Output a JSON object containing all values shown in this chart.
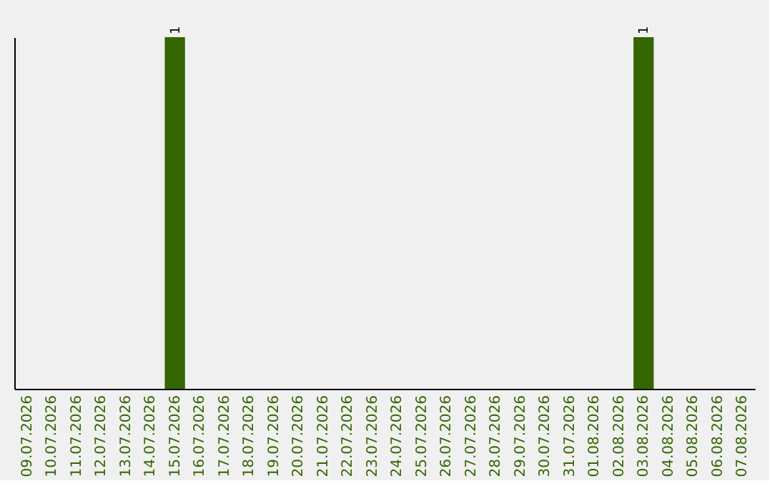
{
  "chart_data": {
    "type": "bar",
    "categories": [
      "09.07.2026",
      "10.07.2026",
      "11.07.2026",
      "12.07.2026",
      "13.07.2026",
      "14.07.2026",
      "15.07.2026",
      "16.07.2026",
      "17.07.2026",
      "18.07.2026",
      "19.07.2026",
      "20.07.2026",
      "21.07.2026",
      "22.07.2026",
      "23.07.2026",
      "24.07.2026",
      "25.07.2026",
      "26.07.2026",
      "27.07.2026",
      "28.07.2026",
      "29.07.2026",
      "30.07.2026",
      "31.07.2026",
      "01.08.2026",
      "02.08.2026",
      "03.08.2026",
      "04.08.2026",
      "05.08.2026",
      "06.08.2026",
      "07.08.2026"
    ],
    "values": [
      0,
      0,
      0,
      0,
      0,
      0,
      1,
      0,
      0,
      0,
      0,
      0,
      0,
      0,
      0,
      0,
      0,
      0,
      0,
      0,
      0,
      0,
      0,
      0,
      0,
      1,
      0,
      0,
      0,
      0
    ],
    "value_labels": [
      null,
      null,
      null,
      null,
      null,
      null,
      "1",
      null,
      null,
      null,
      null,
      null,
      null,
      null,
      null,
      null,
      null,
      null,
      null,
      null,
      null,
      null,
      null,
      null,
      null,
      "1",
      null,
      null,
      null,
      null
    ],
    "color": "#336600",
    "tick_labels": "x",
    "grid": false
  }
}
